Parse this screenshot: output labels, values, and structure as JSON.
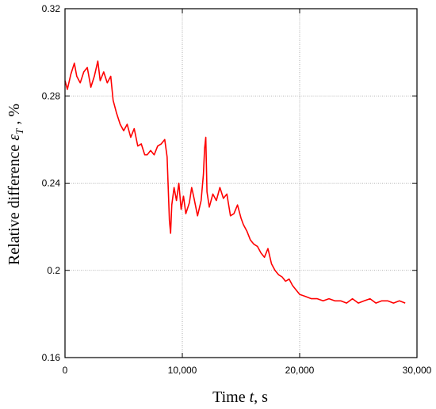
{
  "chart_data": {
    "type": "line",
    "title": "",
    "xlabel": {
      "prefix": "Time ",
      "var": "t",
      "suffix": ", s"
    },
    "ylabel": {
      "prefix": "Relative difference ",
      "var": "ε",
      "sub": "T",
      "suffix": " ,  %"
    },
    "xlim": [
      0,
      30000
    ],
    "ylim": [
      0.16,
      0.32
    ],
    "x_ticks": [
      0,
      10000,
      20000,
      30000
    ],
    "x_tick_labels": [
      "0",
      "10,000",
      "20,000",
      "30,000"
    ],
    "y_ticks": [
      0.16,
      0.2,
      0.24,
      0.28,
      0.32
    ],
    "y_tick_labels": [
      "0.16",
      "0.2",
      "0.24",
      "0.28",
      "0.32"
    ],
    "grid": true,
    "series": [
      {
        "color": "#ff0000",
        "x": [
          0,
          200,
          500,
          800,
          1000,
          1300,
          1600,
          1900,
          2200,
          2500,
          2800,
          3000,
          3300,
          3600,
          3900,
          4100,
          4400,
          4700,
          5000,
          5300,
          5600,
          5900,
          6200,
          6500,
          6800,
          7000,
          7300,
          7600,
          7900,
          8200,
          8500,
          8700,
          8900,
          9000,
          9100,
          9300,
          9500,
          9700,
          9900,
          10100,
          10300,
          10600,
          10800,
          11000,
          11300,
          11600,
          11800,
          11900,
          12000,
          12100,
          12300,
          12600,
          12900,
          13200,
          13500,
          13800,
          14100,
          14400,
          14700,
          15000,
          15200,
          15500,
          15800,
          16100,
          16400,
          16700,
          17000,
          17300,
          17600,
          17900,
          18200,
          18500,
          18800,
          19100,
          19400,
          19700,
          20000,
          20500,
          21000,
          21500,
          22000,
          22500,
          23000,
          23500,
          24000,
          24500,
          25000,
          25500,
          26000,
          26500,
          27000,
          27500,
          28000,
          28500,
          29000
        ],
        "y": [
          0.287,
          0.283,
          0.29,
          0.295,
          0.289,
          0.286,
          0.291,
          0.293,
          0.284,
          0.289,
          0.296,
          0.287,
          0.291,
          0.286,
          0.289,
          0.278,
          0.272,
          0.267,
          0.264,
          0.267,
          0.261,
          0.265,
          0.257,
          0.258,
          0.253,
          0.253,
          0.255,
          0.253,
          0.257,
          0.258,
          0.26,
          0.252,
          0.223,
          0.217,
          0.23,
          0.238,
          0.232,
          0.24,
          0.228,
          0.234,
          0.226,
          0.231,
          0.238,
          0.233,
          0.225,
          0.232,
          0.244,
          0.256,
          0.261,
          0.236,
          0.229,
          0.235,
          0.232,
          0.238,
          0.233,
          0.235,
          0.225,
          0.226,
          0.23,
          0.224,
          0.221,
          0.218,
          0.214,
          0.212,
          0.211,
          0.208,
          0.206,
          0.21,
          0.203,
          0.2,
          0.198,
          0.197,
          0.195,
          0.196,
          0.193,
          0.191,
          0.189,
          0.188,
          0.187,
          0.187,
          0.186,
          0.187,
          0.186,
          0.186,
          0.185,
          0.187,
          0.185,
          0.186,
          0.187,
          0.185,
          0.186,
          0.186,
          0.185,
          0.186,
          0.185
        ]
      }
    ]
  }
}
